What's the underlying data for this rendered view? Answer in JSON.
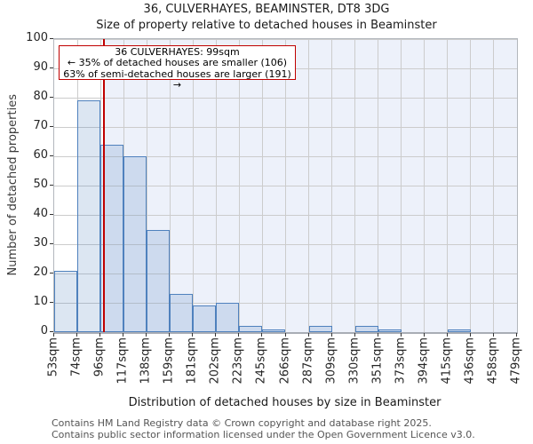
{
  "chart_data": {
    "type": "bar",
    "title": "36, CULVERHAYES, BEAMINSTER, DT8 3DG",
    "subtitle": "Size of property relative to detached houses in Beaminster",
    "xlabel": "Distribution of detached houses by size in Beaminster",
    "ylabel": "Number of detached properties",
    "ylim": [
      0,
      100
    ],
    "ytick_step": 10,
    "grid": true,
    "legend": "none",
    "bin_edges_sqm": [
      53,
      74,
      96,
      117,
      138,
      159,
      181,
      202,
      223,
      245,
      266,
      287,
      309,
      330,
      351,
      373,
      394,
      415,
      436,
      458,
      479
    ],
    "x_tick_labels": [
      "53sqm",
      "74sqm",
      "96sqm",
      "117sqm",
      "138sqm",
      "159sqm",
      "181sqm",
      "202sqm",
      "223sqm",
      "245sqm",
      "266sqm",
      "287sqm",
      "309sqm",
      "330sqm",
      "351sqm",
      "373sqm",
      "394sqm",
      "415sqm",
      "436sqm",
      "458sqm",
      "479sqm"
    ],
    "values": [
      21,
      79,
      64,
      60,
      35,
      13,
      9,
      10,
      2,
      1,
      0,
      2,
      0,
      2,
      1,
      0,
      0,
      1,
      0,
      0
    ],
    "marker": {
      "sqm": 99
    },
    "annotation_lines": [
      "36 CULVERHAYES: 99sqm",
      "← 35% of detached houses are smaller (106)",
      "63% of semi-detached houses are larger (191) →"
    ],
    "colors": {
      "bar_fill": "rgba(79,129,189,0.2)",
      "bar_border": "#4f81bd",
      "marker_line": "#c00000",
      "annotation_border": "#c00000",
      "shaded_region": "#edf1fa",
      "grid": "#cccccc"
    }
  },
  "footer": {
    "line1": "Contains HM Land Registry data © Crown copyright and database right 2025.",
    "line2": "Contains public sector information licensed under the Open Government Licence v3.0."
  }
}
